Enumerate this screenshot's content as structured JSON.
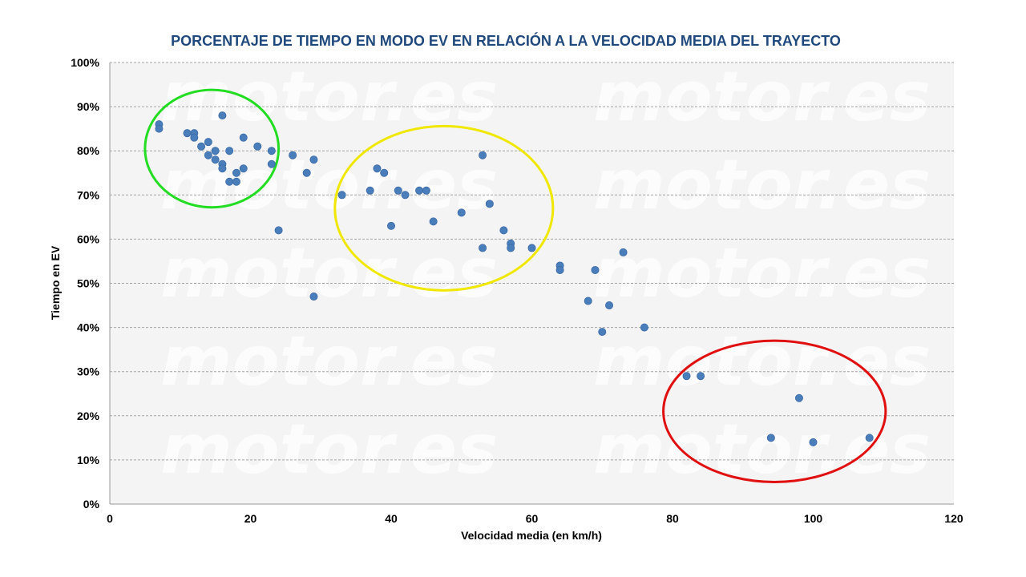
{
  "chart_data": {
    "type": "scatter",
    "title": "PORCENTAJE DE TIEMPO EN MODO EV EN RELACIÓN A LA VELOCIDAD MEDIA DEL TRAYECTO",
    "xlabel": "Velocidad media (en km/h)",
    "ylabel": "Tiempo en EV",
    "xlim": [
      0,
      120
    ],
    "ylim": [
      0,
      100
    ],
    "x_ticks": [
      "0",
      "20",
      "40",
      "60",
      "80",
      "100",
      "120"
    ],
    "y_ticks": [
      "0%",
      "10%",
      "20%",
      "30%",
      "40%",
      "50%",
      "60%",
      "70%",
      "80%",
      "90%",
      "100%"
    ],
    "grid": "horizontal-dashed",
    "point_color": "#4a7ebb",
    "plot_background": "#f4f4f4",
    "watermark": "motor.es",
    "points": [
      {
        "x": 7,
        "y": 86
      },
      {
        "x": 7,
        "y": 85
      },
      {
        "x": 11,
        "y": 84
      },
      {
        "x": 12,
        "y": 84
      },
      {
        "x": 12,
        "y": 83
      },
      {
        "x": 13,
        "y": 81
      },
      {
        "x": 14,
        "y": 82
      },
      {
        "x": 14,
        "y": 79
      },
      {
        "x": 15,
        "y": 80
      },
      {
        "x": 15,
        "y": 78
      },
      {
        "x": 16,
        "y": 88
      },
      {
        "x": 16,
        "y": 77
      },
      {
        "x": 16,
        "y": 76
      },
      {
        "x": 17,
        "y": 80
      },
      {
        "x": 17,
        "y": 73
      },
      {
        "x": 18,
        "y": 75
      },
      {
        "x": 18,
        "y": 73
      },
      {
        "x": 19,
        "y": 83
      },
      {
        "x": 19,
        "y": 76
      },
      {
        "x": 21,
        "y": 81
      },
      {
        "x": 23,
        "y": 80
      },
      {
        "x": 23,
        "y": 77
      },
      {
        "x": 24,
        "y": 62
      },
      {
        "x": 26,
        "y": 79
      },
      {
        "x": 28,
        "y": 75
      },
      {
        "x": 29,
        "y": 78
      },
      {
        "x": 29,
        "y": 47
      },
      {
        "x": 33,
        "y": 70
      },
      {
        "x": 37,
        "y": 71
      },
      {
        "x": 38,
        "y": 76
      },
      {
        "x": 39,
        "y": 75
      },
      {
        "x": 40,
        "y": 63
      },
      {
        "x": 41,
        "y": 71
      },
      {
        "x": 42,
        "y": 70
      },
      {
        "x": 44,
        "y": 71
      },
      {
        "x": 45,
        "y": 71
      },
      {
        "x": 46,
        "y": 64
      },
      {
        "x": 50,
        "y": 66
      },
      {
        "x": 53,
        "y": 79
      },
      {
        "x": 53,
        "y": 58
      },
      {
        "x": 54,
        "y": 68
      },
      {
        "x": 56,
        "y": 62
      },
      {
        "x": 57,
        "y": 59
      },
      {
        "x": 57,
        "y": 58
      },
      {
        "x": 60,
        "y": 58
      },
      {
        "x": 64,
        "y": 54
      },
      {
        "x": 64,
        "y": 53
      },
      {
        "x": 68,
        "y": 46
      },
      {
        "x": 69,
        "y": 53
      },
      {
        "x": 70,
        "y": 39
      },
      {
        "x": 71,
        "y": 45
      },
      {
        "x": 73,
        "y": 57
      },
      {
        "x": 76,
        "y": 40
      },
      {
        "x": 82,
        "y": 29
      },
      {
        "x": 84,
        "y": 29
      },
      {
        "x": 94,
        "y": 15
      },
      {
        "x": 98,
        "y": 24
      },
      {
        "x": 100,
        "y": 14
      },
      {
        "x": 108,
        "y": 15
      }
    ],
    "highlight_ellipses": [
      {
        "color": "#22dd22",
        "cx": 14.5,
        "cy": 80.5,
        "rx": 9.5,
        "ry": 13.3
      },
      {
        "color": "#f0e800",
        "cx": 47.5,
        "cy": 67,
        "rx": 15.5,
        "ry": 18.6
      },
      {
        "color": "#e01010",
        "cx": 94.5,
        "cy": 21,
        "rx": 15.8,
        "ry": 16
      }
    ]
  }
}
